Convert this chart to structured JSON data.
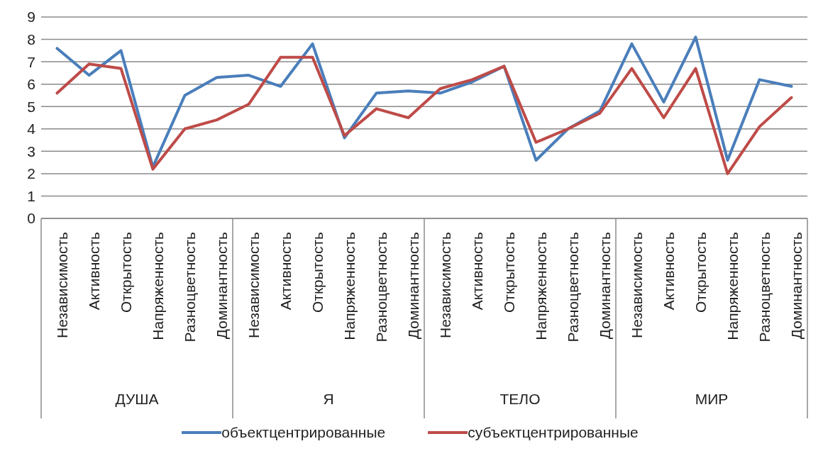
{
  "chart_data": {
    "type": "line",
    "categories": [
      "Независимость",
      "Активность",
      "Открытость",
      "Напряженность",
      "Разноцветность",
      "Доминантность",
      "Независимость",
      "Активность",
      "Открытость",
      "Напряженность",
      "Разноцветность",
      "Доминантность",
      "Независимость",
      "Активность",
      "Открытость",
      "Напряженность",
      "Разноцветность",
      "Доминантность",
      "Независимость",
      "Активность",
      "Открытость",
      "Напряженность",
      "Разноцветность",
      "Доминантность"
    ],
    "series": [
      {
        "name": "объектцентрированные",
        "color": "#4a7ebb",
        "values": [
          7.6,
          6.4,
          7.5,
          2.3,
          5.5,
          6.3,
          6.4,
          5.9,
          7.8,
          3.6,
          5.6,
          5.7,
          5.6,
          6.1,
          6.8,
          2.6,
          4.0,
          4.8,
          7.8,
          5.2,
          8.1,
          2.6,
          6.2,
          5.9
        ]
      },
      {
        "name": "субъектцентрированные",
        "color": "#be4b48",
        "values": [
          5.6,
          6.9,
          6.7,
          2.2,
          4.0,
          4.4,
          5.1,
          7.2,
          7.2,
          3.7,
          4.9,
          4.5,
          5.8,
          6.2,
          6.8,
          3.4,
          4.0,
          4.7,
          6.7,
          4.5,
          6.7,
          2.0,
          4.1,
          5.4
        ]
      }
    ],
    "ylim": [
      0,
      9
    ],
    "yticks": [
      0,
      1,
      2,
      3,
      4,
      5,
      6,
      7,
      8,
      9
    ],
    "grid": "y",
    "legend": "bottom",
    "annotations": [
      "ДУША",
      "Я",
      "ТЕЛО",
      "МИР"
    ]
  }
}
